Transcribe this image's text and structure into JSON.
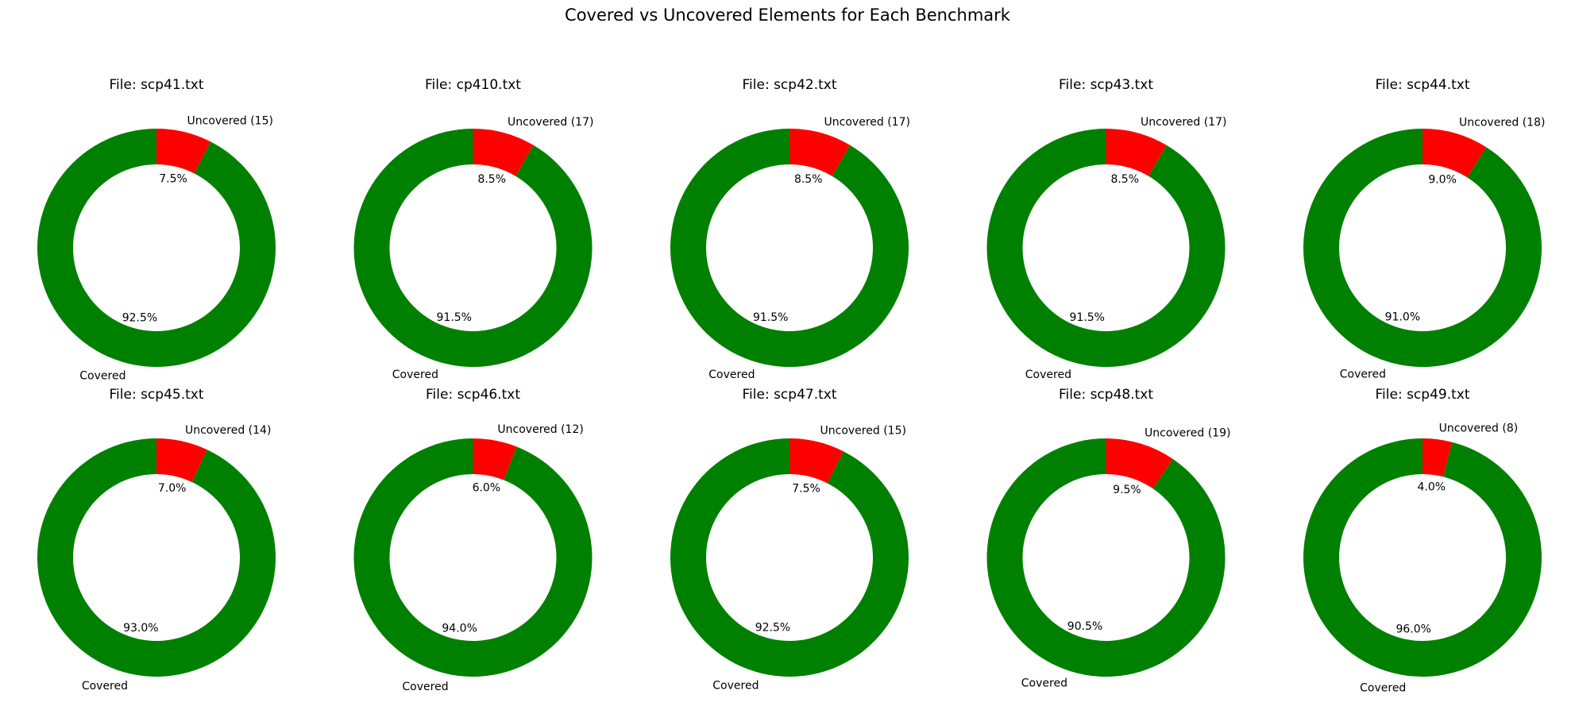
{
  "figure": {
    "title": "Covered vs Uncovered Elements for Each Benchmark"
  },
  "colors": {
    "covered": "#008000",
    "uncovered": "#ff0000",
    "hole": "#ffffff"
  },
  "chart_data": [
    {
      "type": "pie",
      "title": "File: scp41.txt",
      "labels": [
        "Uncovered (15)",
        "Covered"
      ],
      "values": [
        7.5,
        92.5
      ],
      "percent_labels": [
        "7.5%",
        "92.5%"
      ]
    },
    {
      "type": "pie",
      "title": "File: cp410.txt",
      "labels": [
        "Uncovered (17)",
        "Covered"
      ],
      "values": [
        8.5,
        91.5
      ],
      "percent_labels": [
        "8.5%",
        "91.5%"
      ]
    },
    {
      "type": "pie",
      "title": "File: scp42.txt",
      "labels": [
        "Uncovered (17)",
        "Covered"
      ],
      "values": [
        8.5,
        91.5
      ],
      "percent_labels": [
        "8.5%",
        "91.5%"
      ]
    },
    {
      "type": "pie",
      "title": "File: scp43.txt",
      "labels": [
        "Uncovered (17)",
        "Covered"
      ],
      "values": [
        8.5,
        91.5
      ],
      "percent_labels": [
        "8.5%",
        "91.5%"
      ]
    },
    {
      "type": "pie",
      "title": "File: scp44.txt",
      "labels": [
        "Uncovered (18)",
        "Covered"
      ],
      "values": [
        9.0,
        91.0
      ],
      "percent_labels": [
        "9.0%",
        "91.0%"
      ]
    },
    {
      "type": "pie",
      "title": "File: scp45.txt",
      "labels": [
        "Uncovered (14)",
        "Covered"
      ],
      "values": [
        7.0,
        93.0
      ],
      "percent_labels": [
        "7.0%",
        "93.0%"
      ]
    },
    {
      "type": "pie",
      "title": "File: scp46.txt",
      "labels": [
        "Uncovered (12)",
        "Covered"
      ],
      "values": [
        6.0,
        94.0
      ],
      "percent_labels": [
        "6.0%",
        "94.0%"
      ]
    },
    {
      "type": "pie",
      "title": "File: scp47.txt",
      "labels": [
        "Uncovered (15)",
        "Covered"
      ],
      "values": [
        7.5,
        92.5
      ],
      "percent_labels": [
        "7.5%",
        "92.5%"
      ]
    },
    {
      "type": "pie",
      "title": "File: scp48.txt",
      "labels": [
        "Uncovered (19)",
        "Covered"
      ],
      "values": [
        9.5,
        90.5
      ],
      "percent_labels": [
        "9.5%",
        "90.5%"
      ]
    },
    {
      "type": "pie",
      "title": "File: scp49.txt",
      "labels": [
        "Uncovered (8)",
        "Covered"
      ],
      "values": [
        4.0,
        96.0
      ],
      "percent_labels": [
        "4.0%",
        "96.0%"
      ]
    }
  ]
}
